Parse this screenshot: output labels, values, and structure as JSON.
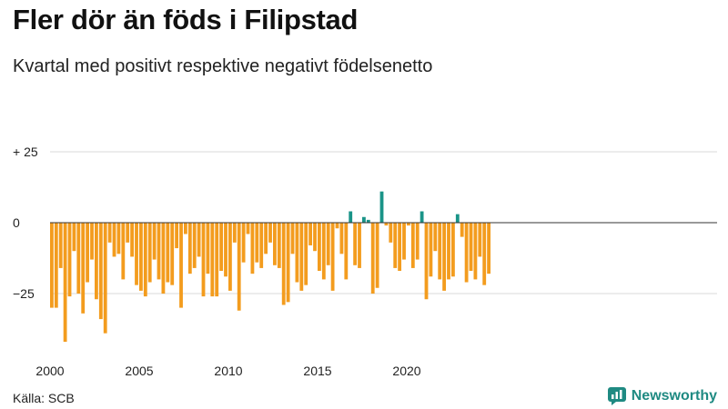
{
  "title": "Fler dör än föds i Filipstad",
  "subtitle": "Kvartal med positivt respektive negativt födelsenetto",
  "source": "Källa: SCB",
  "brand": "Newsworthy",
  "colors": {
    "positive": "#1a9488",
    "negative": "#f39c1e",
    "brand": "#1f8a82"
  },
  "chart_data": {
    "type": "bar",
    "title": "Fler dör än föds i Filipstad",
    "subtitle": "Kvartal med positivt respektive negativt födelsenetto",
    "xlabel": "",
    "ylabel": "",
    "ylim": [
      -45,
      30
    ],
    "yticks": [
      25,
      0,
      -25
    ],
    "ytick_labels": [
      "+ 25",
      "0",
      "−25"
    ],
    "xticks": [
      2000,
      2005,
      2010,
      2015,
      2020
    ],
    "start_year": 2000,
    "values": [
      -30,
      -30,
      -16,
      -42,
      -26,
      -10,
      -25,
      -32,
      -21,
      -13,
      -27,
      -34,
      -39,
      -7,
      -12,
      -11,
      -20,
      -7,
      -12,
      -22,
      -24,
      -26,
      -21,
      -13,
      -20,
      -25,
      -21,
      -22,
      -9,
      -30,
      -4,
      -18,
      -16,
      -12,
      -26,
      -18,
      -26,
      -26,
      -17,
      -19,
      -24,
      -7,
      -31,
      -14,
      -4,
      -18,
      -14,
      -16,
      -11,
      -7,
      -15,
      -16,
      -29,
      -28,
      -11,
      -21,
      -24,
      -22,
      -8,
      -10,
      -17,
      -20,
      -15,
      -24,
      -2,
      -11,
      -20,
      4,
      -15,
      -16,
      2,
      1,
      -25,
      -23,
      11,
      -1,
      -7,
      -16,
      -17,
      -13,
      -1,
      -16,
      -13,
      4,
      -27,
      -19,
      -10,
      -20,
      -24,
      -20,
      -19,
      3,
      -5,
      -21,
      -17,
      -20,
      -12,
      -22,
      -18
    ]
  }
}
